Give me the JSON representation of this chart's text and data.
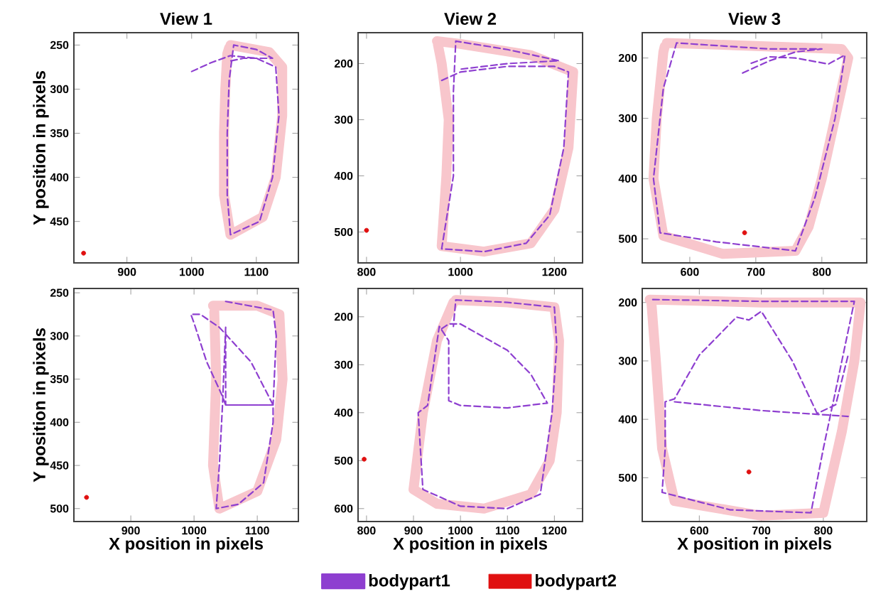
{
  "chart_data": [
    {
      "type": "line",
      "title": "View 1",
      "ylabel": "Y position in pixels",
      "xlim": [
        818,
        1165
      ],
      "ylim": [
        497,
        236
      ],
      "xticks": [
        900,
        1000,
        1100
      ],
      "yticks": [
        250,
        300,
        350,
        400,
        450
      ],
      "series": [
        {
          "color": "#f8c6cc",
          "line_style": "solid",
          "x": [
            1060,
            1120,
            1140,
            1140,
            1130,
            1110,
            1060,
            1050,
            1050,
            1052,
            1055,
            1058
          ],
          "values": [
            250,
            258,
            275,
            330,
            400,
            445,
            465,
            420,
            350,
            300,
            260,
            253
          ]
        },
        {
          "color": "#8e3fd0",
          "line_style": "dashed",
          "x": [
            1000,
            1030,
            1060,
            1100,
            1130,
            1135,
            1125,
            1105,
            1060,
            1055,
            1055,
            1058,
            1065,
            1100,
            1125,
            1080,
            1060
          ],
          "values": [
            280,
            270,
            262,
            265,
            275,
            330,
            400,
            450,
            465,
            420,
            350,
            290,
            250,
            255,
            265,
            265,
            268
          ]
        },
        {
          "type": "scatter",
          "color": "#e01010",
          "x": [
            833
          ],
          "values": [
            486
          ]
        }
      ]
    },
    {
      "type": "line",
      "title": "View 2",
      "xlim": [
        782,
        1260
      ],
      "ylim": [
        555,
        145
      ],
      "xticks": [
        800,
        1000,
        1200
      ],
      "yticks": [
        200,
        300,
        400,
        500
      ],
      "series": [
        {
          "color": "#f8c6cc",
          "line_style": "solid",
          "x": [
            950,
            1000,
            1150,
            1240,
            1230,
            1200,
            1150,
            1050,
            960,
            970,
            975,
            960,
            952
          ],
          "values": [
            160,
            165,
            185,
            215,
            350,
            460,
            520,
            535,
            525,
            400,
            300,
            200,
            166
          ]
        },
        {
          "color": "#8e3fd0",
          "line_style": "dashed",
          "x": [
            960,
            1000,
            1100,
            1200,
            1230,
            1220,
            1190,
            1140,
            1050,
            960,
            985,
            985,
            990,
            1100,
            1210,
            1100,
            1000
          ],
          "values": [
            230,
            215,
            205,
            205,
            215,
            350,
            470,
            520,
            535,
            530,
            400,
            250,
            160,
            175,
            195,
            200,
            210
          ]
        },
        {
          "type": "scatter",
          "color": "#e01010",
          "x": [
            800
          ],
          "values": [
            497
          ]
        }
      ]
    },
    {
      "type": "line",
      "title": "View 3",
      "xlim": [
        528,
        868
      ],
      "ylim": [
        540,
        158
      ],
      "xticks": [
        600,
        700,
        800
      ],
      "yticks": [
        200,
        300,
        400,
        500
      ],
      "series": [
        {
          "color": "#f8c6cc",
          "line_style": "solid",
          "x": [
            565,
            700,
            830,
            840,
            820,
            800,
            780,
            760,
            650,
            560,
            545,
            550,
            560,
            562
          ],
          "values": [
            175,
            180,
            185,
            200,
            300,
            400,
            480,
            520,
            525,
            495,
            400,
            300,
            190,
            181
          ]
        },
        {
          "color": "#8e3fd0",
          "line_style": "dashed",
          "x": [
            680,
            720,
            760,
            800,
            720,
            580,
            560,
            545,
            555,
            640,
            760,
            790,
            820,
            835,
            810,
            760,
            720,
            690
          ],
          "values": [
            225,
            205,
            190,
            185,
            185,
            175,
            250,
            400,
            490,
            505,
            520,
            430,
            300,
            195,
            210,
            200,
            198,
            210
          ]
        },
        {
          "type": "scatter",
          "color": "#e01010",
          "x": [
            683
          ],
          "values": [
            490
          ]
        }
      ]
    },
    {
      "type": "line",
      "xlabel": "X position in pixels",
      "ylabel": "Y position in pixels",
      "xlim": [
        810,
        1165
      ],
      "ylim": [
        515,
        245
      ],
      "xticks": [
        900,
        1000,
        1100
      ],
      "yticks": [
        250,
        300,
        350,
        400,
        450,
        500
      ],
      "series": [
        {
          "color": "#f8c6cc",
          "line_style": "solid",
          "x": [
            1030,
            1100,
            1135,
            1140,
            1130,
            1100,
            1040,
            1030,
            1035,
            1032
          ],
          "values": [
            265,
            265,
            275,
            350,
            420,
            480,
            500,
            450,
            350,
            272
          ]
        },
        {
          "color": "#8e3fd0",
          "line_style": "dashed",
          "x": [
            1050,
            1125,
            1130,
            1125,
            1050,
            1050,
            1045,
            1040,
            1035,
            1070,
            1110,
            1125,
            1125,
            1090,
            1040,
            1010,
            995,
            1000,
            1020,
            1045,
            1050,
            1060,
            1125
          ],
          "values": [
            260,
            270,
            300,
            380,
            380,
            290,
            380,
            450,
            500,
            495,
            470,
            400,
            380,
            330,
            290,
            275,
            275,
            285,
            330,
            370,
            380,
            380,
            380
          ]
        },
        {
          "type": "scatter",
          "color": "#e01010",
          "x": [
            830
          ],
          "values": [
            487
          ]
        }
      ]
    },
    {
      "type": "line",
      "xlabel": "X position in pixels",
      "xlim": [
        782,
        1260
      ],
      "ylim": [
        627,
        141
      ],
      "xticks": [
        800,
        900,
        1000,
        1100,
        1200
      ],
      "yticks": [
        200,
        300,
        400,
        500,
        600
      ],
      "legend": "bottom",
      "series": [
        {
          "color": "#f8c6cc",
          "line_style": "solid",
          "x": [
            990,
            1100,
            1200,
            1210,
            1205,
            1190,
            1150,
            1050,
            950,
            900,
            920,
            950,
            985
          ],
          "values": [
            165,
            170,
            180,
            250,
            400,
            500,
            570,
            600,
            590,
            560,
            400,
            250,
            170
          ]
        },
        {
          "name": "bodypart1",
          "color": "#8e3fd0",
          "line_style": "dashed",
          "x": [
            960,
            975,
            1000,
            1100,
            1150,
            1185,
            1100,
            1000,
            975,
            975,
            955,
            930,
            910,
            920,
            1000,
            1100,
            1170,
            1195,
            1205,
            1200,
            1100,
            990,
            985
          ],
          "values": [
            225,
            215,
            215,
            270,
            320,
            380,
            390,
            385,
            375,
            250,
            220,
            385,
            400,
            560,
            595,
            600,
            570,
            400,
            260,
            180,
            170,
            165,
            220
          ]
        },
        {
          "name": "bodypart2",
          "type": "scatter",
          "color": "#e01010",
          "x": [
            795
          ],
          "values": [
            497
          ]
        }
      ]
    },
    {
      "type": "line",
      "xlabel": "X position in pixels",
      "xlim": [
        508,
        870
      ],
      "ylim": [
        575,
        176
      ],
      "xticks": [
        600,
        700,
        800
      ],
      "yticks": [
        200,
        300,
        400,
        500
      ],
      "series": [
        {
          "color": "#f8c6cc",
          "line_style": "solid",
          "x": [
            520,
            700,
            860,
            850,
            830,
            800,
            700,
            560,
            540,
            530,
            523
          ],
          "values": [
            195,
            200,
            200,
            300,
            420,
            560,
            565,
            540,
            450,
            300,
            203
          ]
        },
        {
          "color": "#8e3fd0",
          "line_style": "dashed",
          "x": [
            525,
            700,
            850,
            820,
            800,
            780,
            650,
            540,
            545,
            545,
            560,
            600,
            660,
            680,
            700,
            750,
            790,
            820,
            840,
            null,
            560,
            700,
            840
          ],
          "values": [
            195,
            198,
            198,
            350,
            450,
            560,
            555,
            525,
            450,
            370,
            365,
            290,
            225,
            230,
            215,
            300,
            390,
            375,
            290,
            null,
            370,
            385,
            395
          ]
        },
        {
          "type": "scatter",
          "color": "#e01010",
          "x": [
            680
          ],
          "values": [
            490
          ]
        }
      ]
    }
  ]
}
